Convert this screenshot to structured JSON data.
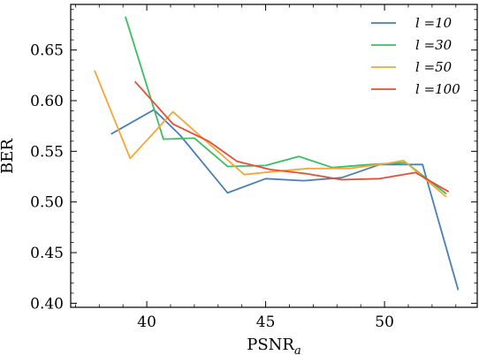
{
  "chart_data": {
    "type": "line",
    "title": "",
    "xlabel": "PSNR",
    "xlabel_sub": "a",
    "ylabel": "BER",
    "xlim": [
      36.8,
      53.9
    ],
    "ylim": [
      0.396,
      0.695
    ],
    "xticks": [
      40,
      45,
      50
    ],
    "yticks": [
      0.4,
      0.45,
      0.5,
      0.55,
      0.6,
      0.65
    ],
    "ytick_labels": [
      "0.40",
      "0.45",
      "0.50",
      "0.55",
      "0.60",
      "0.65"
    ],
    "grid": false,
    "legend_position": "top-right",
    "series": [
      {
        "name": "l =10",
        "color": "#4a7fb5",
        "x": [
          38.5,
          40.3,
          41.4,
          43.4,
          45.0,
          46.6,
          48.2,
          49.8,
          51.6,
          53.1
        ],
        "y": [
          0.567,
          0.591,
          0.566,
          0.509,
          0.523,
          0.521,
          0.524,
          0.537,
          0.537,
          0.413
        ]
      },
      {
        "name": "l =30",
        "color": "#3bbf63",
        "x": [
          39.1,
          40.7,
          42.0,
          43.4,
          45.0,
          46.4,
          47.8,
          49.4,
          50.9,
          52.6
        ],
        "y": [
          0.683,
          0.562,
          0.563,
          0.535,
          0.536,
          0.545,
          0.534,
          0.537,
          0.539,
          0.508
        ]
      },
      {
        "name": "l =50",
        "color": "#f5a73a",
        "x": [
          37.8,
          39.3,
          41.1,
          42.5,
          44.1,
          45.3,
          46.8,
          48.5,
          50.1,
          50.8,
          52.6
        ],
        "y": [
          0.63,
          0.543,
          0.589,
          0.56,
          0.527,
          0.53,
          0.533,
          0.533,
          0.538,
          0.541,
          0.505
        ]
      },
      {
        "name": "l =100",
        "color": "#ea4d35",
        "x": [
          39.5,
          41.1,
          42.6,
          43.8,
          45.2,
          46.7,
          48.2,
          49.8,
          51.3,
          52.7
        ],
        "y": [
          0.619,
          0.577,
          0.56,
          0.54,
          0.532,
          0.528,
          0.522,
          0.523,
          0.529,
          0.51
        ]
      }
    ]
  }
}
